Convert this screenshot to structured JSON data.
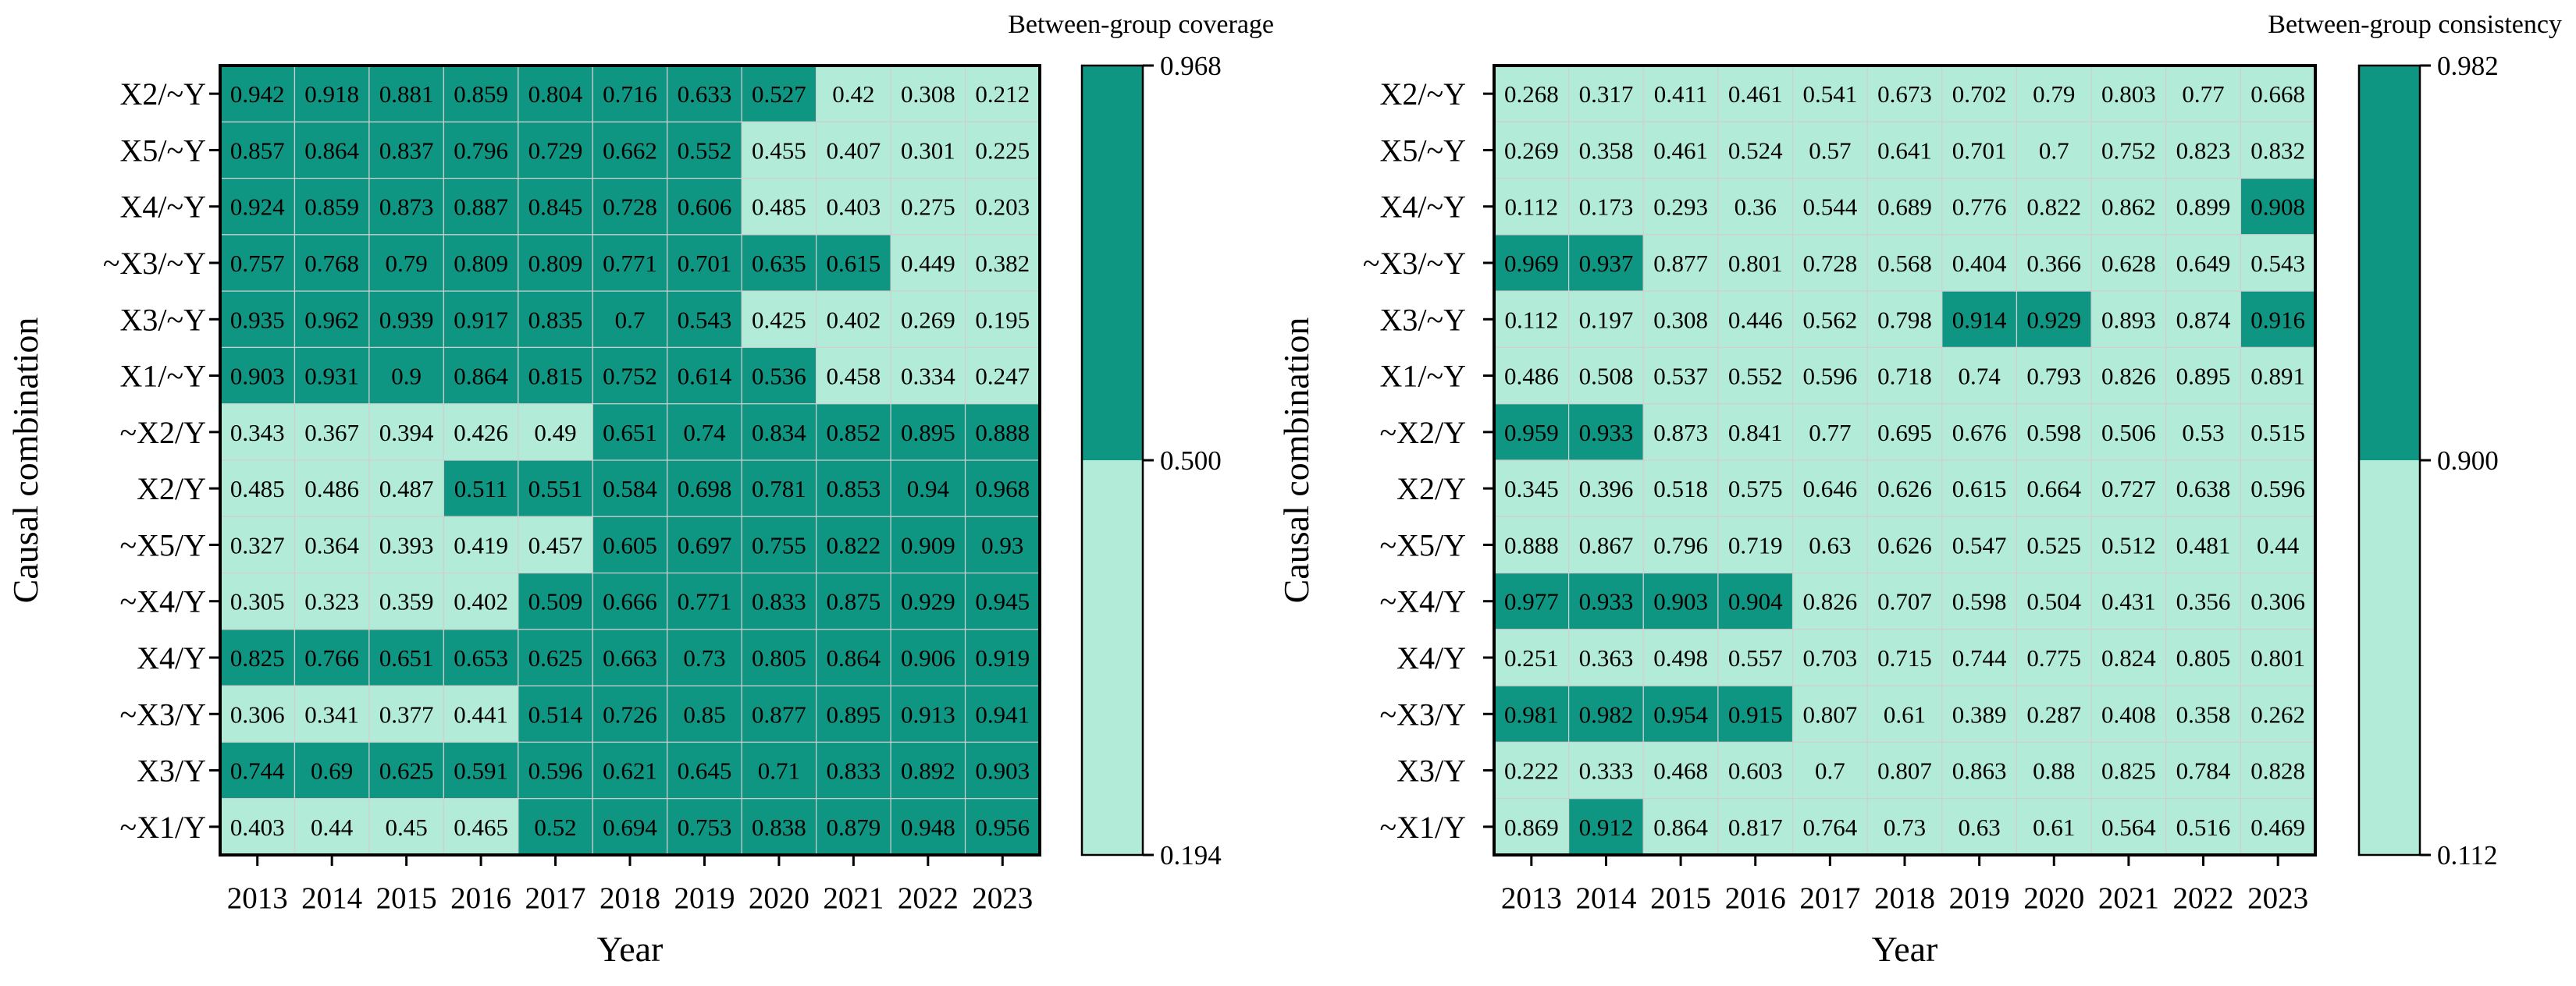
{
  "chart_data": [
    {
      "type": "heatmap",
      "title": "",
      "colorbar_title": "Between-group coverage",
      "xlabel": "Year",
      "ylabel": "Causal combination",
      "categories": [
        "2013",
        "2014",
        "2015",
        "2016",
        "2017",
        "2018",
        "2019",
        "2020",
        "2021",
        "2022",
        "2023"
      ],
      "rows": [
        "X2/~Y",
        "X5/~Y",
        "X4/~Y",
        "~X3/~Y",
        "X3/~Y",
        "X1/~Y",
        "~X2/Y",
        "X2/Y",
        "~X5/Y",
        "~X4/Y",
        "X4/Y",
        "~X3/Y",
        "X3/Y",
        "~X1/Y"
      ],
      "values": [
        [
          0.942,
          0.918,
          0.881,
          0.859,
          0.804,
          0.716,
          0.633,
          0.527,
          0.42,
          0.308,
          0.212
        ],
        [
          0.857,
          0.864,
          0.837,
          0.796,
          0.729,
          0.662,
          0.552,
          0.455,
          0.407,
          0.301,
          0.225
        ],
        [
          0.924,
          0.859,
          0.873,
          0.887,
          0.845,
          0.728,
          0.606,
          0.485,
          0.403,
          0.275,
          0.203
        ],
        [
          0.757,
          0.768,
          0.79,
          0.809,
          0.809,
          0.771,
          0.701,
          0.635,
          0.615,
          0.449,
          0.382
        ],
        [
          0.935,
          0.962,
          0.939,
          0.917,
          0.835,
          0.7,
          0.543,
          0.425,
          0.402,
          0.269,
          0.195
        ],
        [
          0.903,
          0.931,
          0.9,
          0.864,
          0.815,
          0.752,
          0.614,
          0.536,
          0.458,
          0.334,
          0.247
        ],
        [
          0.343,
          0.367,
          0.394,
          0.426,
          0.49,
          0.651,
          0.74,
          0.834,
          0.852,
          0.895,
          0.888
        ],
        [
          0.485,
          0.486,
          0.487,
          0.511,
          0.551,
          0.584,
          0.698,
          0.781,
          0.853,
          0.94,
          0.968
        ],
        [
          0.327,
          0.364,
          0.393,
          0.419,
          0.457,
          0.605,
          0.697,
          0.755,
          0.822,
          0.909,
          0.93
        ],
        [
          0.305,
          0.323,
          0.359,
          0.402,
          0.509,
          0.666,
          0.771,
          0.833,
          0.875,
          0.929,
          0.945
        ],
        [
          0.825,
          0.766,
          0.651,
          0.653,
          0.625,
          0.663,
          0.73,
          0.805,
          0.864,
          0.906,
          0.919
        ],
        [
          0.306,
          0.341,
          0.377,
          0.441,
          0.514,
          0.726,
          0.85,
          0.877,
          0.895,
          0.913,
          0.941
        ],
        [
          0.744,
          0.69,
          0.625,
          0.591,
          0.596,
          0.621,
          0.645,
          0.71,
          0.833,
          0.892,
          0.903
        ],
        [
          0.403,
          0.44,
          0.45,
          0.465,
          0.52,
          0.694,
          0.753,
          0.838,
          0.879,
          0.948,
          0.956
        ]
      ],
      "colorbar": {
        "min": 0.194,
        "threshold": 0.5,
        "max": 0.968,
        "tick_labels": [
          "0.968",
          "0.500",
          "0.194"
        ]
      },
      "colors": {
        "high": "#0f9682",
        "low": "#b2ecd9",
        "grid": "#cfcfcf"
      }
    },
    {
      "type": "heatmap",
      "title": "",
      "colorbar_title": "Between-group consistency",
      "xlabel": "Year",
      "ylabel": "Causal combination",
      "categories": [
        "2013",
        "2014",
        "2015",
        "2016",
        "2017",
        "2018",
        "2019",
        "2020",
        "2021",
        "2022",
        "2023"
      ],
      "rows": [
        "X2/~Y",
        "X5/~Y",
        "X4/~Y",
        "~X3/~Y",
        "X3/~Y",
        "X1/~Y",
        "~X2/Y",
        "X2/Y",
        "~X5/Y",
        "~X4/Y",
        "X4/Y",
        "~X3/Y",
        "X3/Y",
        "~X1/Y"
      ],
      "values": [
        [
          0.268,
          0.317,
          0.411,
          0.461,
          0.541,
          0.673,
          0.702,
          0.79,
          0.803,
          0.77,
          0.668
        ],
        [
          0.269,
          0.358,
          0.461,
          0.524,
          0.57,
          0.641,
          0.701,
          0.7,
          0.752,
          0.823,
          0.832
        ],
        [
          0.112,
          0.173,
          0.293,
          0.36,
          0.544,
          0.689,
          0.776,
          0.822,
          0.862,
          0.899,
          0.908
        ],
        [
          0.969,
          0.937,
          0.877,
          0.801,
          0.728,
          0.568,
          0.404,
          0.366,
          0.628,
          0.649,
          0.543
        ],
        [
          0.112,
          0.197,
          0.308,
          0.446,
          0.562,
          0.798,
          0.914,
          0.929,
          0.893,
          0.874,
          0.916
        ],
        [
          0.486,
          0.508,
          0.537,
          0.552,
          0.596,
          0.718,
          0.74,
          0.793,
          0.826,
          0.895,
          0.891
        ],
        [
          0.959,
          0.933,
          0.873,
          0.841,
          0.77,
          0.695,
          0.676,
          0.598,
          0.506,
          0.53,
          0.515
        ],
        [
          0.345,
          0.396,
          0.518,
          0.575,
          0.646,
          0.626,
          0.615,
          0.664,
          0.727,
          0.638,
          0.596
        ],
        [
          0.888,
          0.867,
          0.796,
          0.719,
          0.63,
          0.626,
          0.547,
          0.525,
          0.512,
          0.481,
          0.44
        ],
        [
          0.977,
          0.933,
          0.903,
          0.904,
          0.826,
          0.707,
          0.598,
          0.504,
          0.431,
          0.356,
          0.306
        ],
        [
          0.251,
          0.363,
          0.498,
          0.557,
          0.703,
          0.715,
          0.744,
          0.775,
          0.824,
          0.805,
          0.801
        ],
        [
          0.981,
          0.982,
          0.954,
          0.915,
          0.807,
          0.61,
          0.389,
          0.287,
          0.408,
          0.358,
          0.262
        ],
        [
          0.222,
          0.333,
          0.468,
          0.603,
          0.7,
          0.807,
          0.863,
          0.88,
          0.825,
          0.784,
          0.828
        ],
        [
          0.869,
          0.912,
          0.864,
          0.817,
          0.764,
          0.73,
          0.63,
          0.61,
          0.564,
          0.516,
          0.469
        ]
      ],
      "colorbar": {
        "min": 0.112,
        "threshold": 0.9,
        "max": 0.982,
        "tick_labels": [
          "0.982",
          "0.900",
          "0.112"
        ]
      },
      "colors": {
        "high": "#0f9682",
        "low": "#b2ecd9",
        "grid": "#cfcfcf"
      }
    }
  ]
}
